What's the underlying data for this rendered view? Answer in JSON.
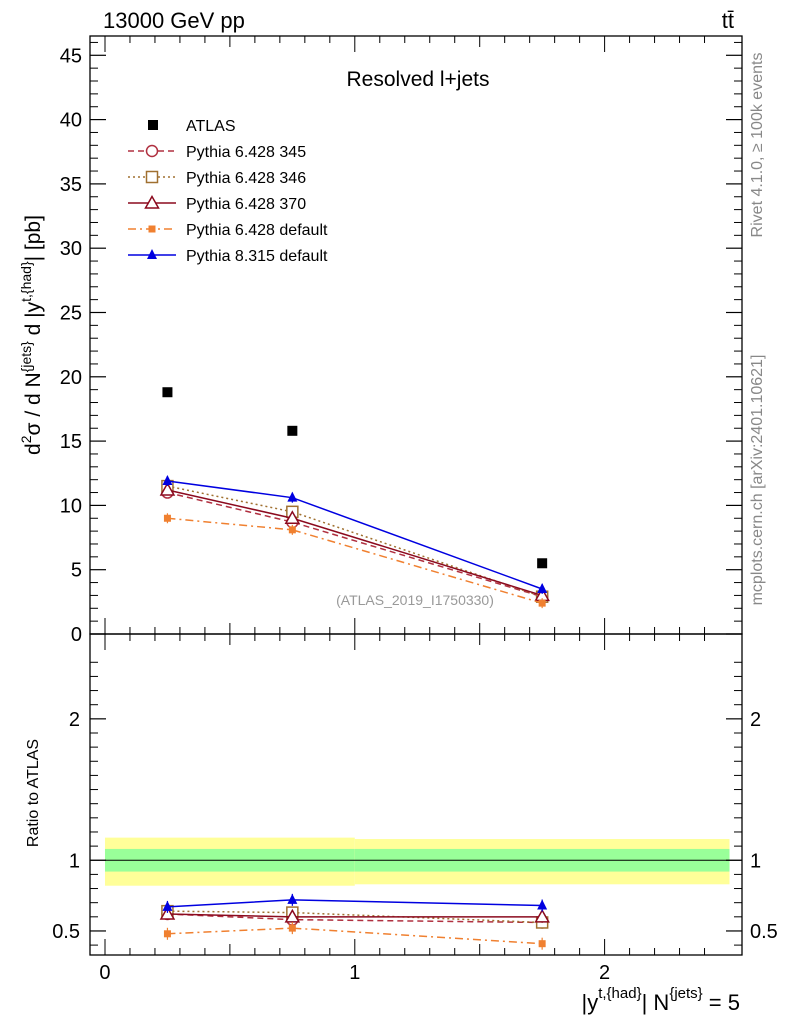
{
  "header": {
    "energy_label": "13000 GeV pp",
    "process_label": "tt̄"
  },
  "side_labels": {
    "rivet": "Rivet 4.1.0, ≥ 100k events",
    "mcplots": "mcplots.cern.ch [arXiv:2401.10621]"
  },
  "colors": {
    "data": "#000000",
    "pythia6_345": "#b03040",
    "pythia6_346": "#a07030",
    "pythia6_370": "#8b0a1e",
    "pythia6_default": "#f08030",
    "pythia8_default": "#0000e0",
    "band_inner": "#99ff99",
    "band_outer": "#ffff99"
  },
  "chart_data": [
    {
      "type": "scatter",
      "panel": "main",
      "title": "Resolved l+jets",
      "watermark": "(ATLAS_2019_I1750330)",
      "ylabel": "d²σ / d N^{jets} d |y^{t,{had}}| [pb]",
      "ylim": [
        0,
        46.5
      ],
      "xlim": [
        -0.06,
        2.55
      ],
      "yticks": [
        0,
        5,
        10,
        15,
        20,
        25,
        30,
        35,
        40,
        45
      ],
      "ytick_labels": [
        "0",
        "5",
        "10",
        "15",
        "20",
        "25",
        "30",
        "35",
        "40",
        "45"
      ],
      "legend_placement": "top-left",
      "x": [
        0.25,
        0.75,
        1.75
      ],
      "data": {
        "name": "ATLAS",
        "values": [
          18.8,
          15.8,
          5.5
        ]
      },
      "series": [
        {
          "name": "Pythia 6.428 345",
          "values": [
            11.0,
            8.7,
            2.9
          ],
          "style": "dashed",
          "marker": "open-circle",
          "color_key": "pythia6_345"
        },
        {
          "name": "Pythia 6.428 346",
          "values": [
            11.5,
            9.5,
            2.9
          ],
          "style": "dotted",
          "marker": "open-square",
          "color_key": "pythia6_346"
        },
        {
          "name": "Pythia 6.428 370",
          "values": [
            11.2,
            9.0,
            3.0
          ],
          "style": "solid",
          "marker": "open-triangle",
          "color_key": "pythia6_370"
        },
        {
          "name": "Pythia 6.428 default",
          "values": [
            9.0,
            8.1,
            2.4
          ],
          "style": "dashdot",
          "marker": "filled-square",
          "color_key": "pythia6_default"
        },
        {
          "name": "Pythia 8.315 default",
          "values": [
            11.9,
            10.6,
            3.5
          ],
          "style": "solid",
          "marker": "filled-triangle",
          "color_key": "pythia8_default"
        }
      ]
    },
    {
      "type": "scatter",
      "panel": "ratio",
      "ylabel": "Ratio to ATLAS",
      "ylim": [
        0.33,
        2.6
      ],
      "xlim": [
        -0.06,
        2.55
      ],
      "yticks": [
        0.5,
        1,
        2
      ],
      "ytick_labels": [
        "0.5",
        "1",
        "2"
      ],
      "xticks": [
        0,
        1,
        2
      ],
      "xtick_labels": [
        "0",
        "1",
        "2"
      ],
      "xlabel": "|y^{t,{had}}| N^{jets} = 5",
      "x": [
        0.25,
        0.75,
        1.75
      ],
      "bands": [
        {
          "x_range": [
            0.0,
            1.0
          ],
          "inner": [
            0.92,
            1.08
          ],
          "outer": [
            0.82,
            1.16
          ]
        },
        {
          "x_range": [
            1.0,
            2.5
          ],
          "inner": [
            0.92,
            1.08
          ],
          "outer": [
            0.83,
            1.15
          ]
        }
      ],
      "series": [
        {
          "name": "Pythia 6.428 345",
          "values": [
            0.62,
            0.58,
            0.56
          ],
          "color_key": "pythia6_345"
        },
        {
          "name": "Pythia 6.428 346",
          "values": [
            0.64,
            0.63,
            0.56
          ],
          "color_key": "pythia6_346"
        },
        {
          "name": "Pythia 6.428 370",
          "values": [
            0.62,
            0.6,
            0.6
          ],
          "color_key": "pythia6_370"
        },
        {
          "name": "Pythia 6.428 default",
          "values": [
            0.48,
            0.52,
            0.41
          ],
          "color_key": "pythia6_default"
        },
        {
          "name": "Pythia 8.315 default",
          "values": [
            0.67,
            0.72,
            0.68
          ],
          "color_key": "pythia8_default"
        }
      ]
    }
  ]
}
